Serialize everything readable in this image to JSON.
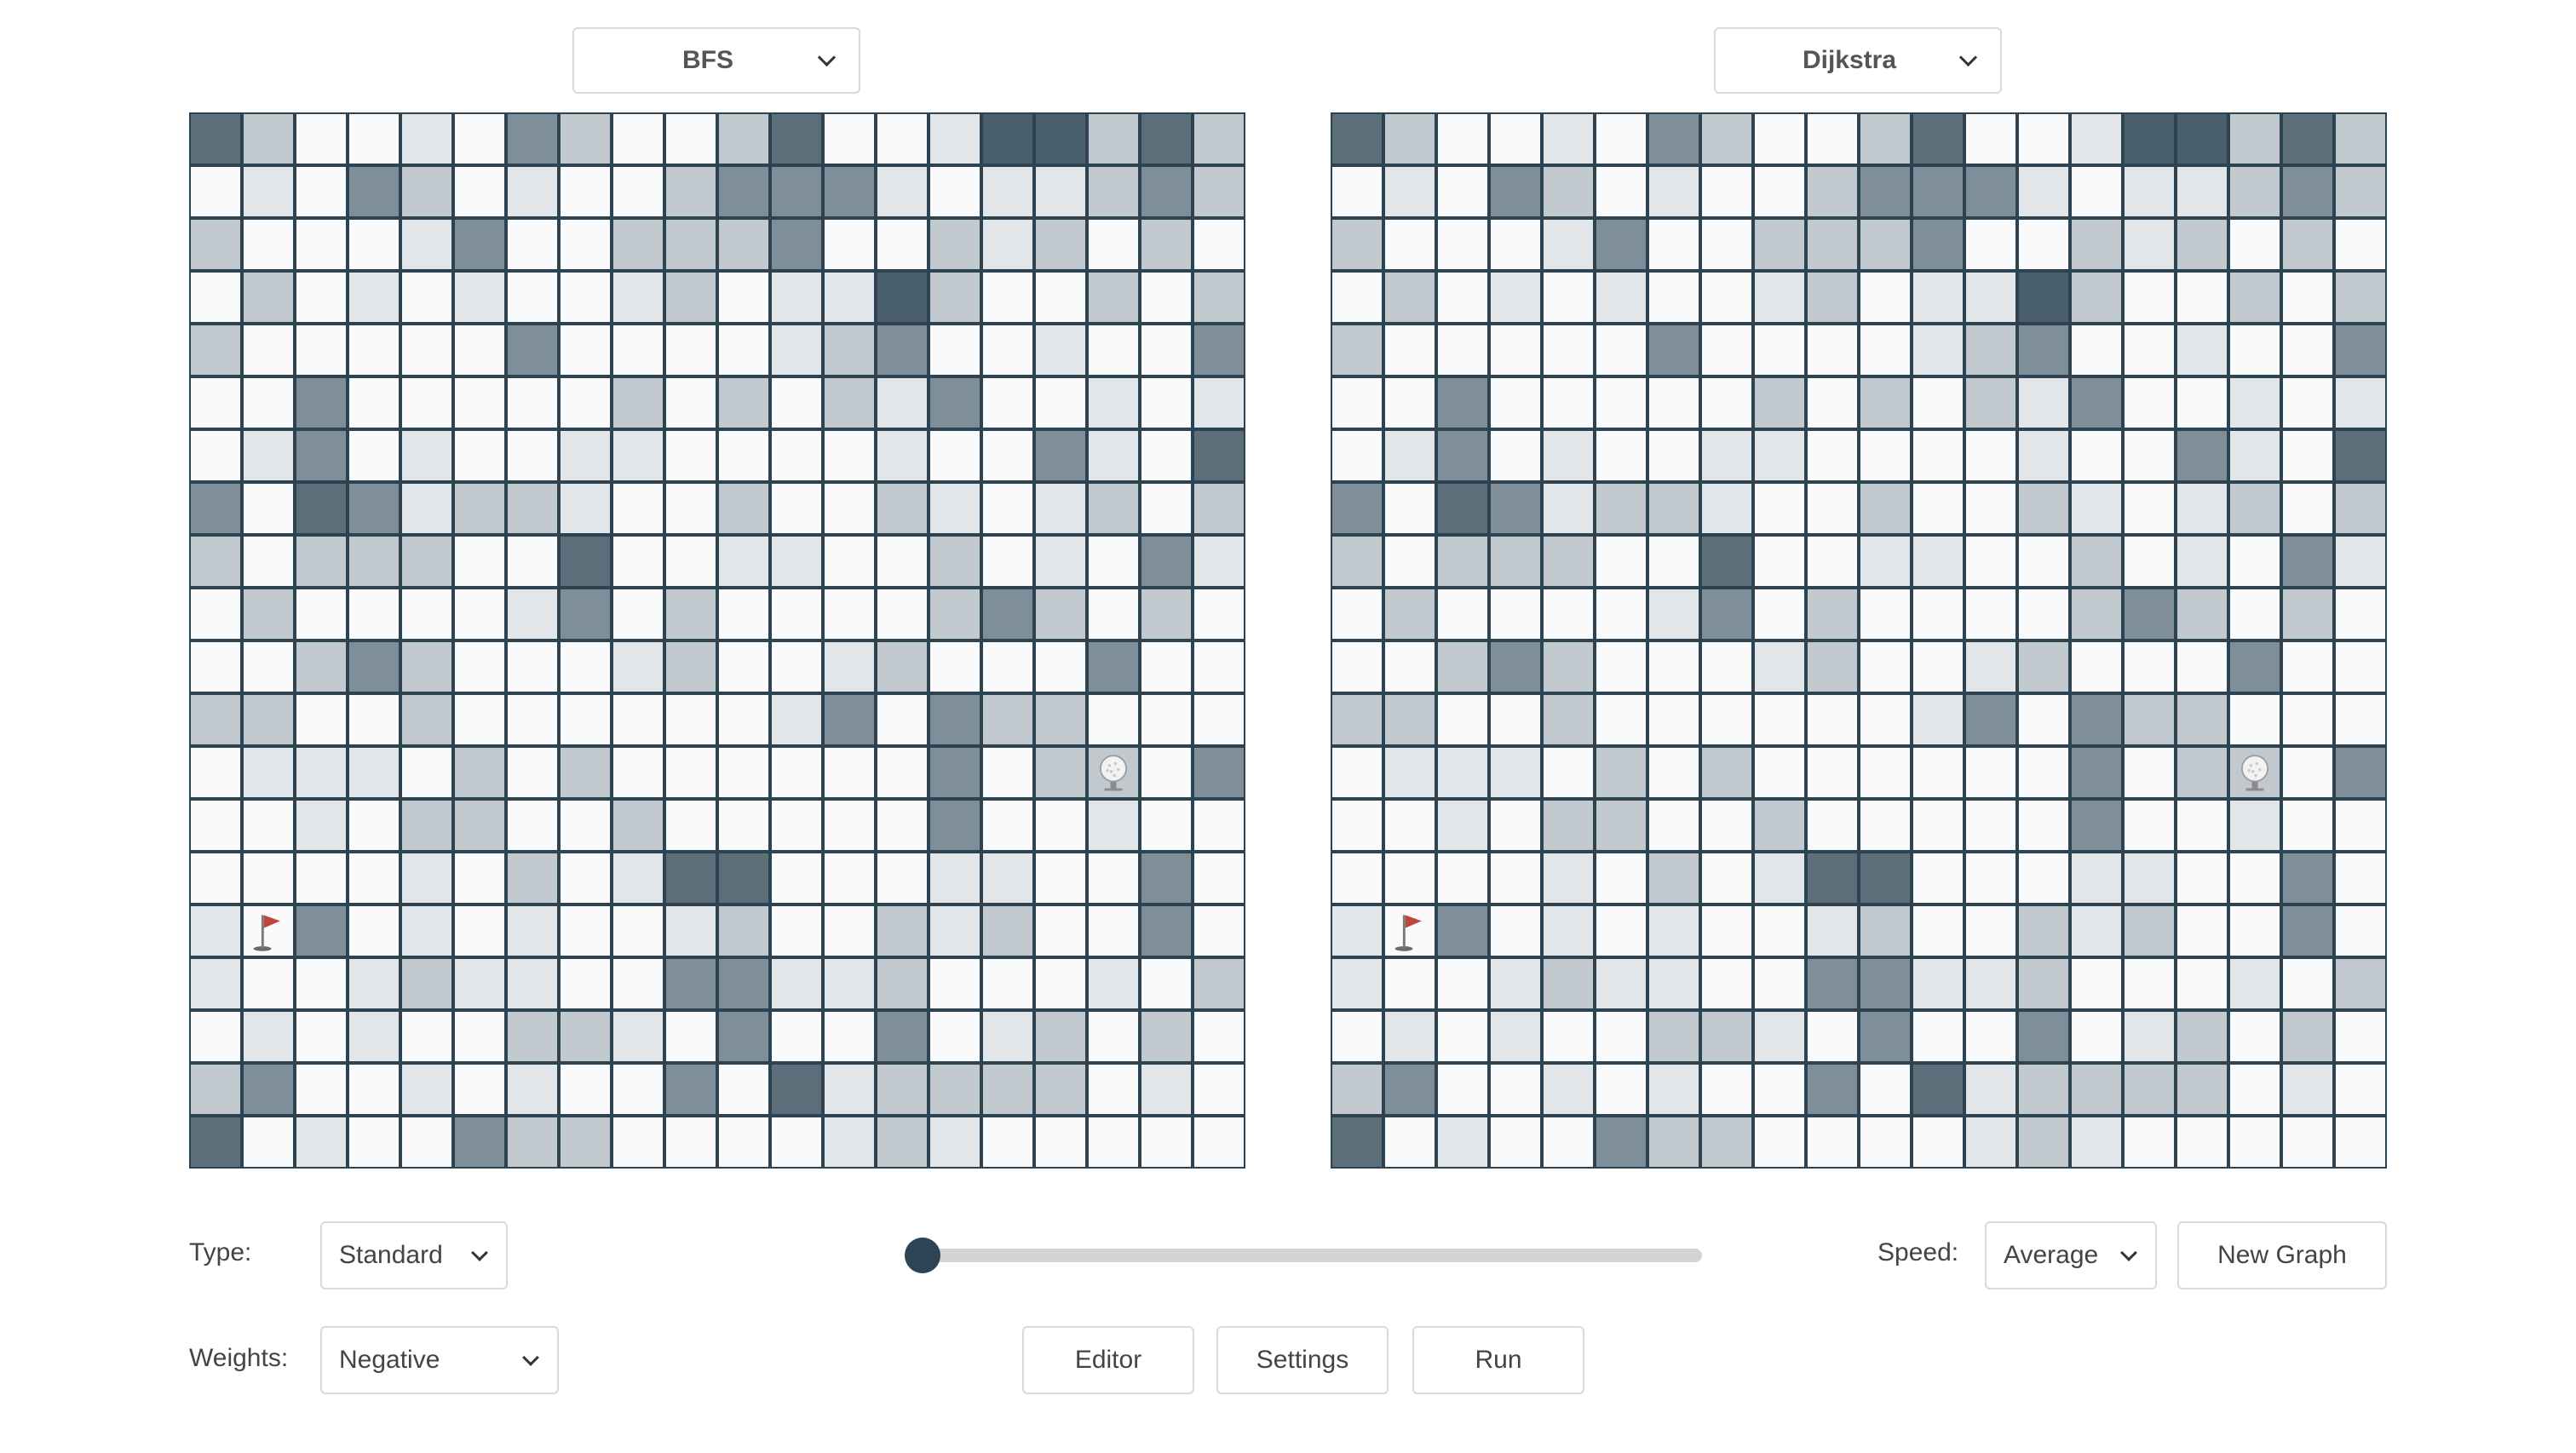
{
  "panels": [
    {
      "algorithm": "BFS",
      "rows": [
        "42001032002400155242",
        "01032010023331011232",
        "20001300222300212020",
        "02010100120115200202",
        "20000030000123001003",
        "00300000202021300101",
        "01301001100001003104",
        "30431221002002101202",
        "20222004001100201031",
        "02000013020000232020",
        "00232000120012000300",
        "22002000000130322000",
        "01110202000000302203",
        "00102200200000300100",
        "00001020144000110030",
        "10301010012002120030",
        "10012110033112000102",
        "01010022103003012020",
        "23001010030412222010",
        "40100322000012100000"
      ],
      "flag": {
        "row": 15,
        "col": 1
      },
      "ball": {
        "row": 12,
        "col": 17
      }
    },
    {
      "algorithm": "Dijkstra",
      "rows": [
        "42001032002400155242",
        "01032010023331011232",
        "20001300222300212020",
        "02010100120115200202",
        "20000030000123001003",
        "00300000202021300101",
        "01301001100001003104",
        "30431221002002101202",
        "20222004001100201031",
        "02000013020000232020",
        "00232000120012000300",
        "22002000000130322000",
        "01110202000000302203",
        "00102200200000300100",
        "00001020144000110030",
        "10301010012002120030",
        "10012110033112000102",
        "01010022103003012020",
        "23001010030412222010",
        "40100322000012100000"
      ],
      "flag": {
        "row": 15,
        "col": 1
      },
      "ball": {
        "row": 12,
        "col": 17
      }
    }
  ],
  "cell_colors": [
    "#f9fafb",
    "#e2e6e9",
    "#c1c9ce",
    "#7e8f99",
    "#5b6e7a",
    "#4a5f6c"
  ],
  "cell_icons": {
    "flag": "golf-flag-icon",
    "ball": "golf-ball-icon"
  },
  "controls": {
    "type_label": "Type:",
    "type_value": "Standard",
    "weights_label": "Weights:",
    "weights_value": "Negative",
    "speed_label": "Speed:",
    "speed_value": "Average",
    "new_graph": "New Graph",
    "editor": "Editor",
    "settings": "Settings",
    "run": "Run",
    "progress": 0
  }
}
